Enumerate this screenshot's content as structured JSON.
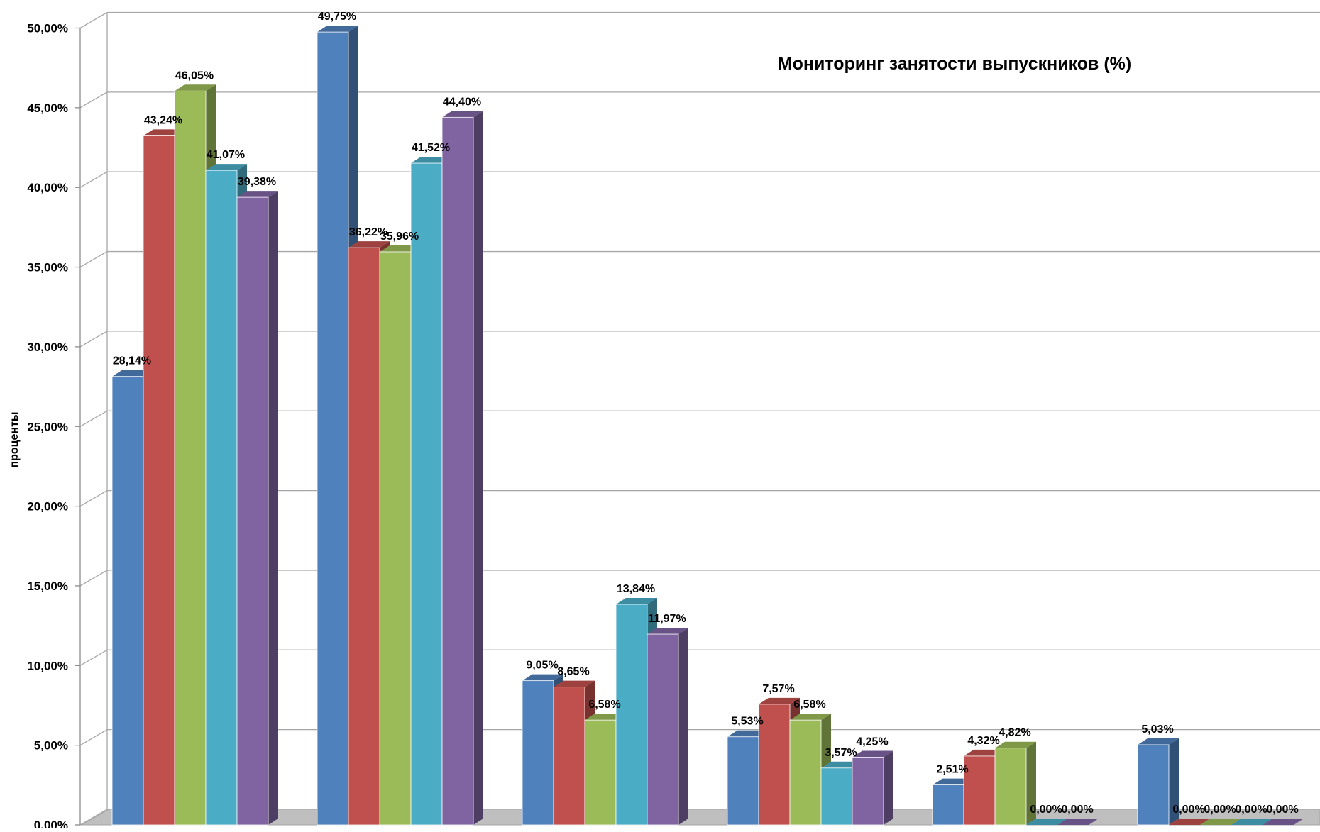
{
  "chart_data": {
    "type": "bar",
    "title": "Мониторинг занятости выпускников (%)",
    "ylabel": "проценты",
    "xlabel": "",
    "ylim": [
      0,
      50
    ],
    "y_ticks": [
      "0,00%",
      "5,00%",
      "10,00%",
      "15,00%",
      "20,00%",
      "25,00%",
      "30,00%",
      "35,00%",
      "40,00%",
      "45,00%",
      "50,00%"
    ],
    "grid": true,
    "style": "3d-clustered-column",
    "categories": [
      "",
      "",
      "",
      "",
      "",
      ""
    ],
    "series": [
      {
        "color": "#4F81BD",
        "values": [
          28.14,
          49.75,
          9.05,
          5.53,
          2.51,
          5.03
        ],
        "labels": [
          "28,14%",
          "49,75%",
          "9,05%",
          "5,53%",
          "2,51%",
          "5,03%"
        ]
      },
      {
        "color": "#C0504D",
        "values": [
          43.24,
          36.22,
          8.65,
          7.57,
          4.32,
          0.0
        ],
        "labels": [
          "43,24%",
          "36,22%",
          "8,65%",
          "7,57%",
          "4,32%",
          "0,00%"
        ]
      },
      {
        "color": "#9BBB59",
        "values": [
          46.05,
          35.96,
          6.58,
          6.58,
          4.82,
          0.0
        ],
        "labels": [
          "46,05%",
          "35,96%",
          "6,58%",
          "6,58%",
          "4,82%",
          "0,00%"
        ]
      },
      {
        "color": "#4BACC6",
        "values": [
          41.07,
          41.52,
          13.84,
          3.57,
          0.0,
          0.0
        ],
        "labels": [
          "41,07%",
          "41,52%",
          "13,84%",
          "3,57%",
          "0,00%",
          "0,00%"
        ]
      },
      {
        "color": "#8064A2",
        "values": [
          39.38,
          44.4,
          11.97,
          4.25,
          0.0,
          0.0
        ],
        "labels": [
          "39,38%",
          "44,40%",
          "11,97%",
          "4,25%",
          "0,00%",
          "0,00%"
        ]
      }
    ]
  }
}
